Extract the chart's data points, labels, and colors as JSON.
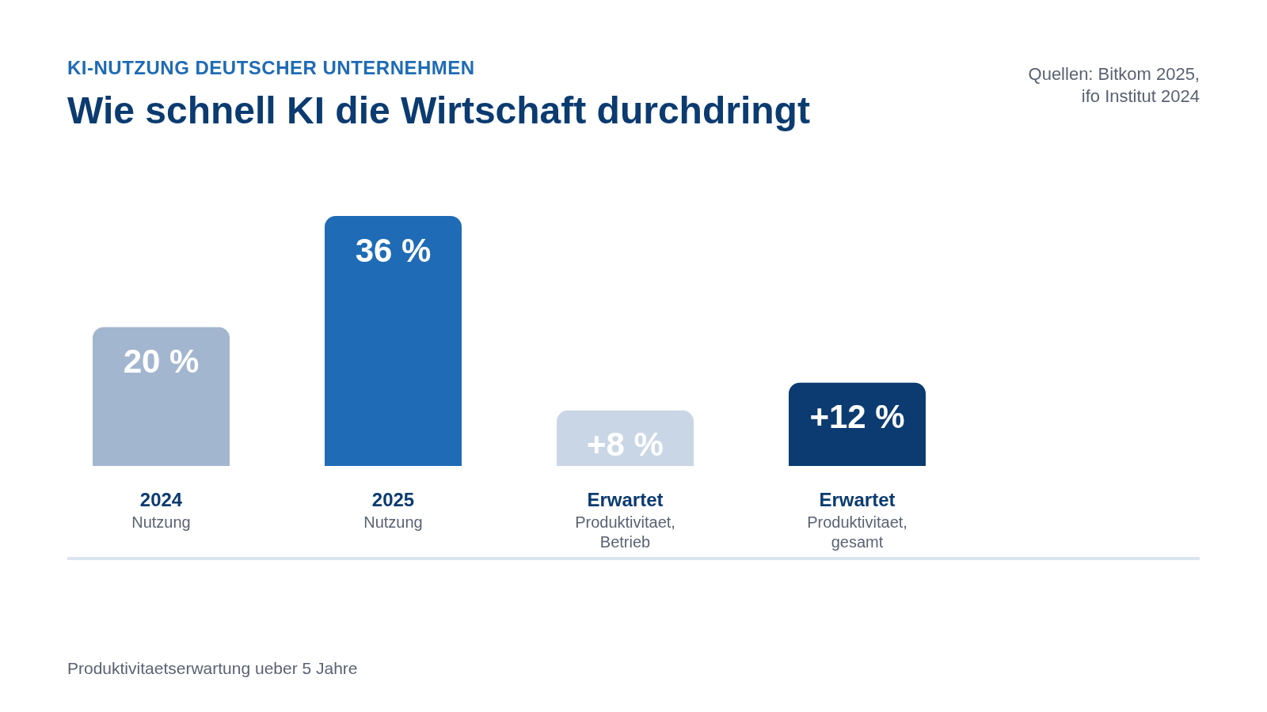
{
  "chart_data": {
    "type": "bar",
    "subtitle": "KI-NUTZUNG DEUTSCHER UNTERNEHMEN",
    "title": "Wie schnell KI die Wirtschaft durchdringt",
    "categories": [
      "2024\nNutzung",
      "2025\nNutzung",
      "Erwartet\nProduktivitaet,\nBetrieb",
      "Erwartet\nProduktivitaet,\ngesamt"
    ],
    "values": [
      20,
      36,
      8,
      12
    ],
    "colors": [
      "#a3b6cf",
      "#1f6bb5",
      "#c9d6e5",
      "#0b3b70"
    ],
    "value_labels": [
      "20 %",
      "36 %",
      "+8 %",
      "+12 %"
    ],
    "annotations": [
      "Quellen: Bitkom 2025,\nifo Institut 2024",
      "Produktivitaetserwartung ueber 5 Jahre"
    ]
  }
}
